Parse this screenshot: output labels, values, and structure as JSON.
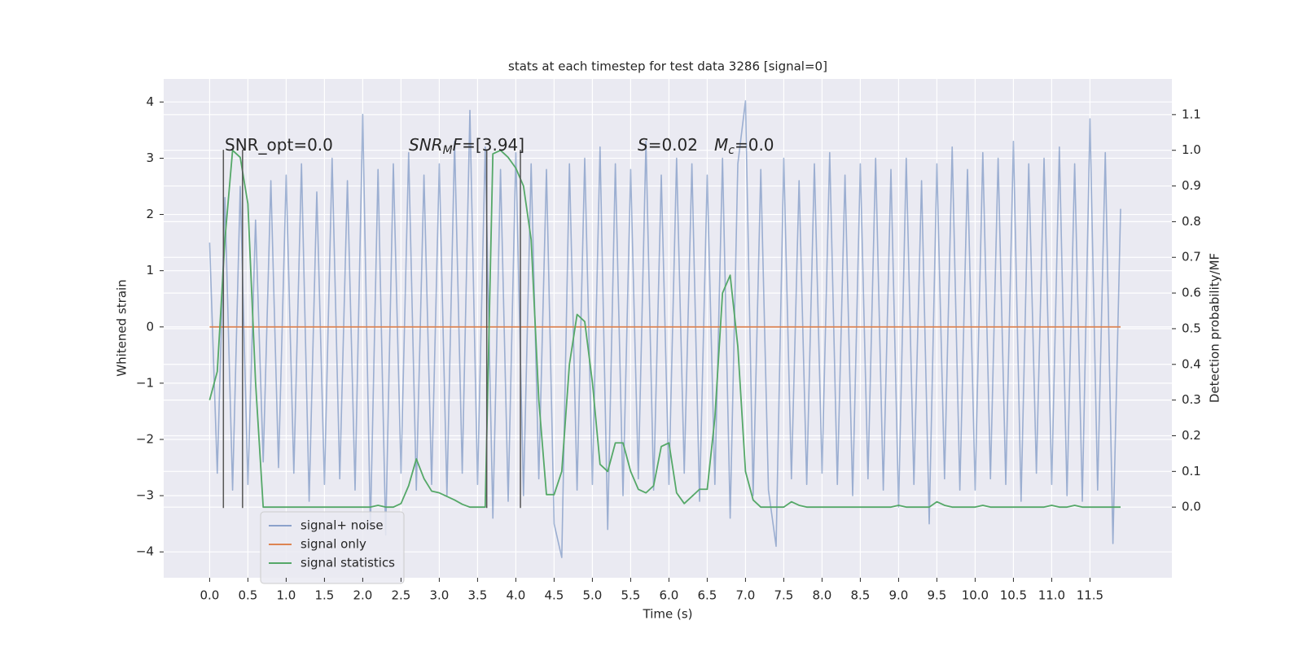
{
  "chart_data": {
    "type": "line",
    "title": "stats at each timestep for test data 3286 [signal=0]",
    "xlabel": "Time (s)",
    "ylabel": "Whitened strain",
    "y2label": "Detection probability/MF",
    "annotations": [
      [
        "SNR_opt=0.0"
      ],
      [
        "SNR",
        "M",
        "F",
        "=[3.94]"
      ],
      [
        "S",
        "=0.02"
      ],
      [
        "M",
        "c",
        "=0.0"
      ]
    ],
    "x": [
      0.0,
      0.1,
      0.2,
      0.3,
      0.4,
      0.5,
      0.6,
      0.7,
      0.8,
      0.9,
      1.0,
      1.1,
      1.2,
      1.3,
      1.4,
      1.5,
      1.6,
      1.7,
      1.8,
      1.9,
      2.0,
      2.1,
      2.2,
      2.3,
      2.4,
      2.5,
      2.6,
      2.7,
      2.8,
      2.9,
      3.0,
      3.1,
      3.2,
      3.3,
      3.4,
      3.5,
      3.6,
      3.7,
      3.8,
      3.9,
      4.0,
      4.1,
      4.2,
      4.3,
      4.4,
      4.5,
      4.6,
      4.7,
      4.8,
      4.9,
      5.0,
      5.1,
      5.2,
      5.3,
      5.4,
      5.5,
      5.6,
      5.7,
      5.8,
      5.9,
      6.0,
      6.1,
      6.2,
      6.3,
      6.4,
      6.5,
      6.6,
      6.7,
      6.8,
      6.9,
      7.0,
      7.1,
      7.2,
      7.3,
      7.4,
      7.5,
      7.6,
      7.7,
      7.8,
      7.9,
      8.0,
      8.1,
      8.2,
      8.3,
      8.4,
      8.5,
      8.6,
      8.7,
      8.8,
      8.9,
      9.0,
      9.1,
      9.2,
      9.3,
      9.4,
      9.5,
      9.6,
      9.7,
      9.8,
      9.9,
      10.0,
      10.1,
      10.2,
      10.3,
      10.4,
      10.5,
      10.6,
      10.7,
      10.8,
      10.9,
      11.0,
      11.1,
      11.2,
      11.3,
      11.4,
      11.5,
      11.6,
      11.7,
      11.8,
      11.9
    ],
    "series": [
      {
        "name": "signal+ noise",
        "color": "#4c72b0",
        "values": [
          1.5,
          -2.6,
          2.3,
          -2.9,
          2.5,
          -2.8,
          1.9,
          -2.4,
          2.6,
          -2.5,
          2.7,
          -2.6,
          2.9,
          -3.1,
          2.4,
          -2.8,
          3.0,
          -2.7,
          2.6,
          -2.9,
          3.78,
          -3.6,
          2.8,
          -3.7,
          2.9,
          -2.6,
          3.1,
          -2.9,
          2.7,
          -2.8,
          2.9,
          -3.0,
          3.3,
          -2.6,
          3.85,
          -2.8,
          3.2,
          -3.4,
          2.8,
          -3.1,
          3.1,
          -3.0,
          2.9,
          -2.7,
          2.8,
          -3.5,
          -4.1,
          2.9,
          -2.9,
          3.0,
          -2.8,
          3.2,
          -3.6,
          2.9,
          -3.0,
          2.8,
          -2.7,
          3.3,
          -2.9,
          2.7,
          -2.8,
          3.0,
          -2.6,
          2.9,
          -3.1,
          2.7,
          -2.8,
          3.0,
          -3.4,
          2.9,
          4.02,
          -3.0,
          2.8,
          -2.9,
          -3.9,
          3.0,
          -2.7,
          2.6,
          -2.8,
          2.9,
          -2.6,
          3.1,
          -2.8,
          2.7,
          -3.0,
          2.9,
          -2.7,
          3.0,
          -2.9,
          2.8,
          -3.2,
          3.0,
          -2.8,
          2.6,
          -3.5,
          2.9,
          -2.7,
          3.2,
          -2.9,
          2.8,
          -2.9,
          3.1,
          -2.7,
          3.0,
          -2.8,
          3.3,
          -3.1,
          2.9,
          -2.6,
          3.0,
          -2.8,
          3.2,
          -3.0,
          2.9,
          -3.1,
          3.7,
          -2.9,
          3.1,
          -3.85,
          2.1
        ]
      },
      {
        "name": "signal only",
        "color": "#dd8452",
        "values": [
          0,
          0,
          0,
          0,
          0,
          0,
          0,
          0,
          0,
          0,
          0,
          0,
          0,
          0,
          0,
          0,
          0,
          0,
          0,
          0,
          0,
          0,
          0,
          0,
          0,
          0,
          0,
          0,
          0,
          0,
          0,
          0,
          0,
          0,
          0,
          0,
          0,
          0,
          0,
          0,
          0,
          0,
          0,
          0,
          0,
          0,
          0,
          0,
          0,
          0,
          0,
          0,
          0,
          0,
          0,
          0,
          0,
          0,
          0,
          0,
          0,
          0,
          0,
          0,
          0,
          0,
          0,
          0,
          0,
          0,
          0,
          0,
          0,
          0,
          0,
          0,
          0,
          0,
          0,
          0,
          0,
          0,
          0,
          0,
          0,
          0,
          0,
          0,
          0,
          0,
          0,
          0,
          0,
          0,
          0,
          0,
          0,
          0,
          0,
          0,
          0,
          0,
          0,
          0,
          0,
          0,
          0,
          0,
          0,
          0,
          0,
          0,
          0,
          0,
          0,
          0,
          0,
          0,
          0,
          0
        ]
      },
      {
        "name": "signal statistics",
        "color": "#55a868",
        "axis": "y2",
        "values": [
          0.3,
          0.38,
          0.75,
          1.0,
          0.98,
          0.85,
          0.35,
          0.0,
          0.0,
          0.0,
          0.0,
          0.0,
          0.0,
          0.0,
          0.0,
          0.0,
          0.0,
          0.0,
          0.0,
          0.0,
          0.0,
          0.0,
          0.005,
          0.0,
          0.0,
          0.01,
          0.06,
          0.135,
          0.08,
          0.045,
          0.04,
          0.03,
          0.02,
          0.008,
          0.0,
          0.0,
          0.0,
          0.99,
          1.0,
          0.98,
          0.95,
          0.9,
          0.75,
          0.3,
          0.035,
          0.035,
          0.1,
          0.4,
          0.54,
          0.52,
          0.35,
          0.12,
          0.1,
          0.18,
          0.18,
          0.1,
          0.05,
          0.04,
          0.06,
          0.17,
          0.18,
          0.04,
          0.01,
          0.03,
          0.05,
          0.05,
          0.25,
          0.6,
          0.65,
          0.45,
          0.1,
          0.02,
          0.0,
          0.0,
          0.0,
          0.0,
          0.015,
          0.005,
          0.0,
          0.0,
          0.0,
          0.0,
          0.0,
          0.0,
          0.0,
          0.0,
          0.0,
          0.0,
          0.0,
          0.0,
          0.005,
          0.0,
          0.0,
          0.0,
          0.0,
          0.015,
          0.005,
          0.0,
          0.0,
          0.0,
          0.0,
          0.005,
          0.0,
          0.0,
          0.0,
          0.0,
          0.0,
          0.0,
          0.0,
          0.0,
          0.005,
          0.0,
          0.0,
          0.005,
          0.0,
          0.0,
          0.0,
          0.0,
          0.0,
          0.0
        ]
      }
    ],
    "vlines": [
      0.18,
      0.43,
      3.62,
      4.06
    ],
    "vline_range": [
      -3.22,
      3.15
    ],
    "vline_color": "#555555",
    "xlim": [
      -0.6,
      12.57
    ],
    "ylim": [
      -4.46,
      4.41
    ],
    "y2lim": [
      -0.198,
      1.2
    ],
    "xticks": [
      {
        "value": 0,
        "label": "0.0"
      },
      {
        "value": 0.5,
        "label": "0.5"
      },
      {
        "value": 1,
        "label": "1.0"
      },
      {
        "value": 1.5,
        "label": "1.5"
      },
      {
        "value": 2,
        "label": "2.0"
      },
      {
        "value": 2.5,
        "label": "2.5"
      },
      {
        "value": 3,
        "label": "3.0"
      },
      {
        "value": 3.5,
        "label": "3.5"
      },
      {
        "value": 4,
        "label": "4.0"
      },
      {
        "value": 4.5,
        "label": "4.5"
      },
      {
        "value": 5,
        "label": "5.0"
      },
      {
        "value": 5.5,
        "label": "5.5"
      },
      {
        "value": 6,
        "label": "6.0"
      },
      {
        "value": 6.5,
        "label": "6.5"
      },
      {
        "value": 7,
        "label": "7.0"
      },
      {
        "value": 7.5,
        "label": "7.5"
      },
      {
        "value": 8,
        "label": "8.0"
      },
      {
        "value": 8.5,
        "label": "8.5"
      },
      {
        "value": 9,
        "label": "9.0"
      },
      {
        "value": 9.5,
        "label": "9.5"
      },
      {
        "value": 10,
        "label": "10.0"
      },
      {
        "value": 10.5,
        "label": "10.5"
      },
      {
        "value": 11,
        "label": "11.0"
      },
      {
        "value": 11.5,
        "label": "11.5"
      }
    ],
    "yticks": [
      {
        "value": -4,
        "label": "−4"
      },
      {
        "value": -3,
        "label": "−3"
      },
      {
        "value": -2,
        "label": "−2"
      },
      {
        "value": -1,
        "label": "−1"
      },
      0,
      1,
      2,
      3,
      4
    ],
    "y2ticks": [
      {
        "value": 0,
        "label": "0.0"
      },
      {
        "value": 0.1,
        "label": "0.1"
      },
      {
        "value": 0.2,
        "label": "0.2"
      },
      {
        "value": 0.3,
        "label": "0.3"
      },
      {
        "value": 0.4,
        "label": "0.4"
      },
      {
        "value": 0.5,
        "label": "0.5"
      },
      {
        "value": 0.6,
        "label": "0.6"
      },
      {
        "value": 0.7,
        "label": "0.7"
      },
      {
        "value": 0.8,
        "label": "0.8"
      },
      {
        "value": 0.9,
        "label": "0.9"
      },
      {
        "value": 1,
        "label": "1.0"
      },
      {
        "value": 1.1,
        "label": "1.1"
      }
    ],
    "grid": true,
    "legend": "lower left"
  }
}
